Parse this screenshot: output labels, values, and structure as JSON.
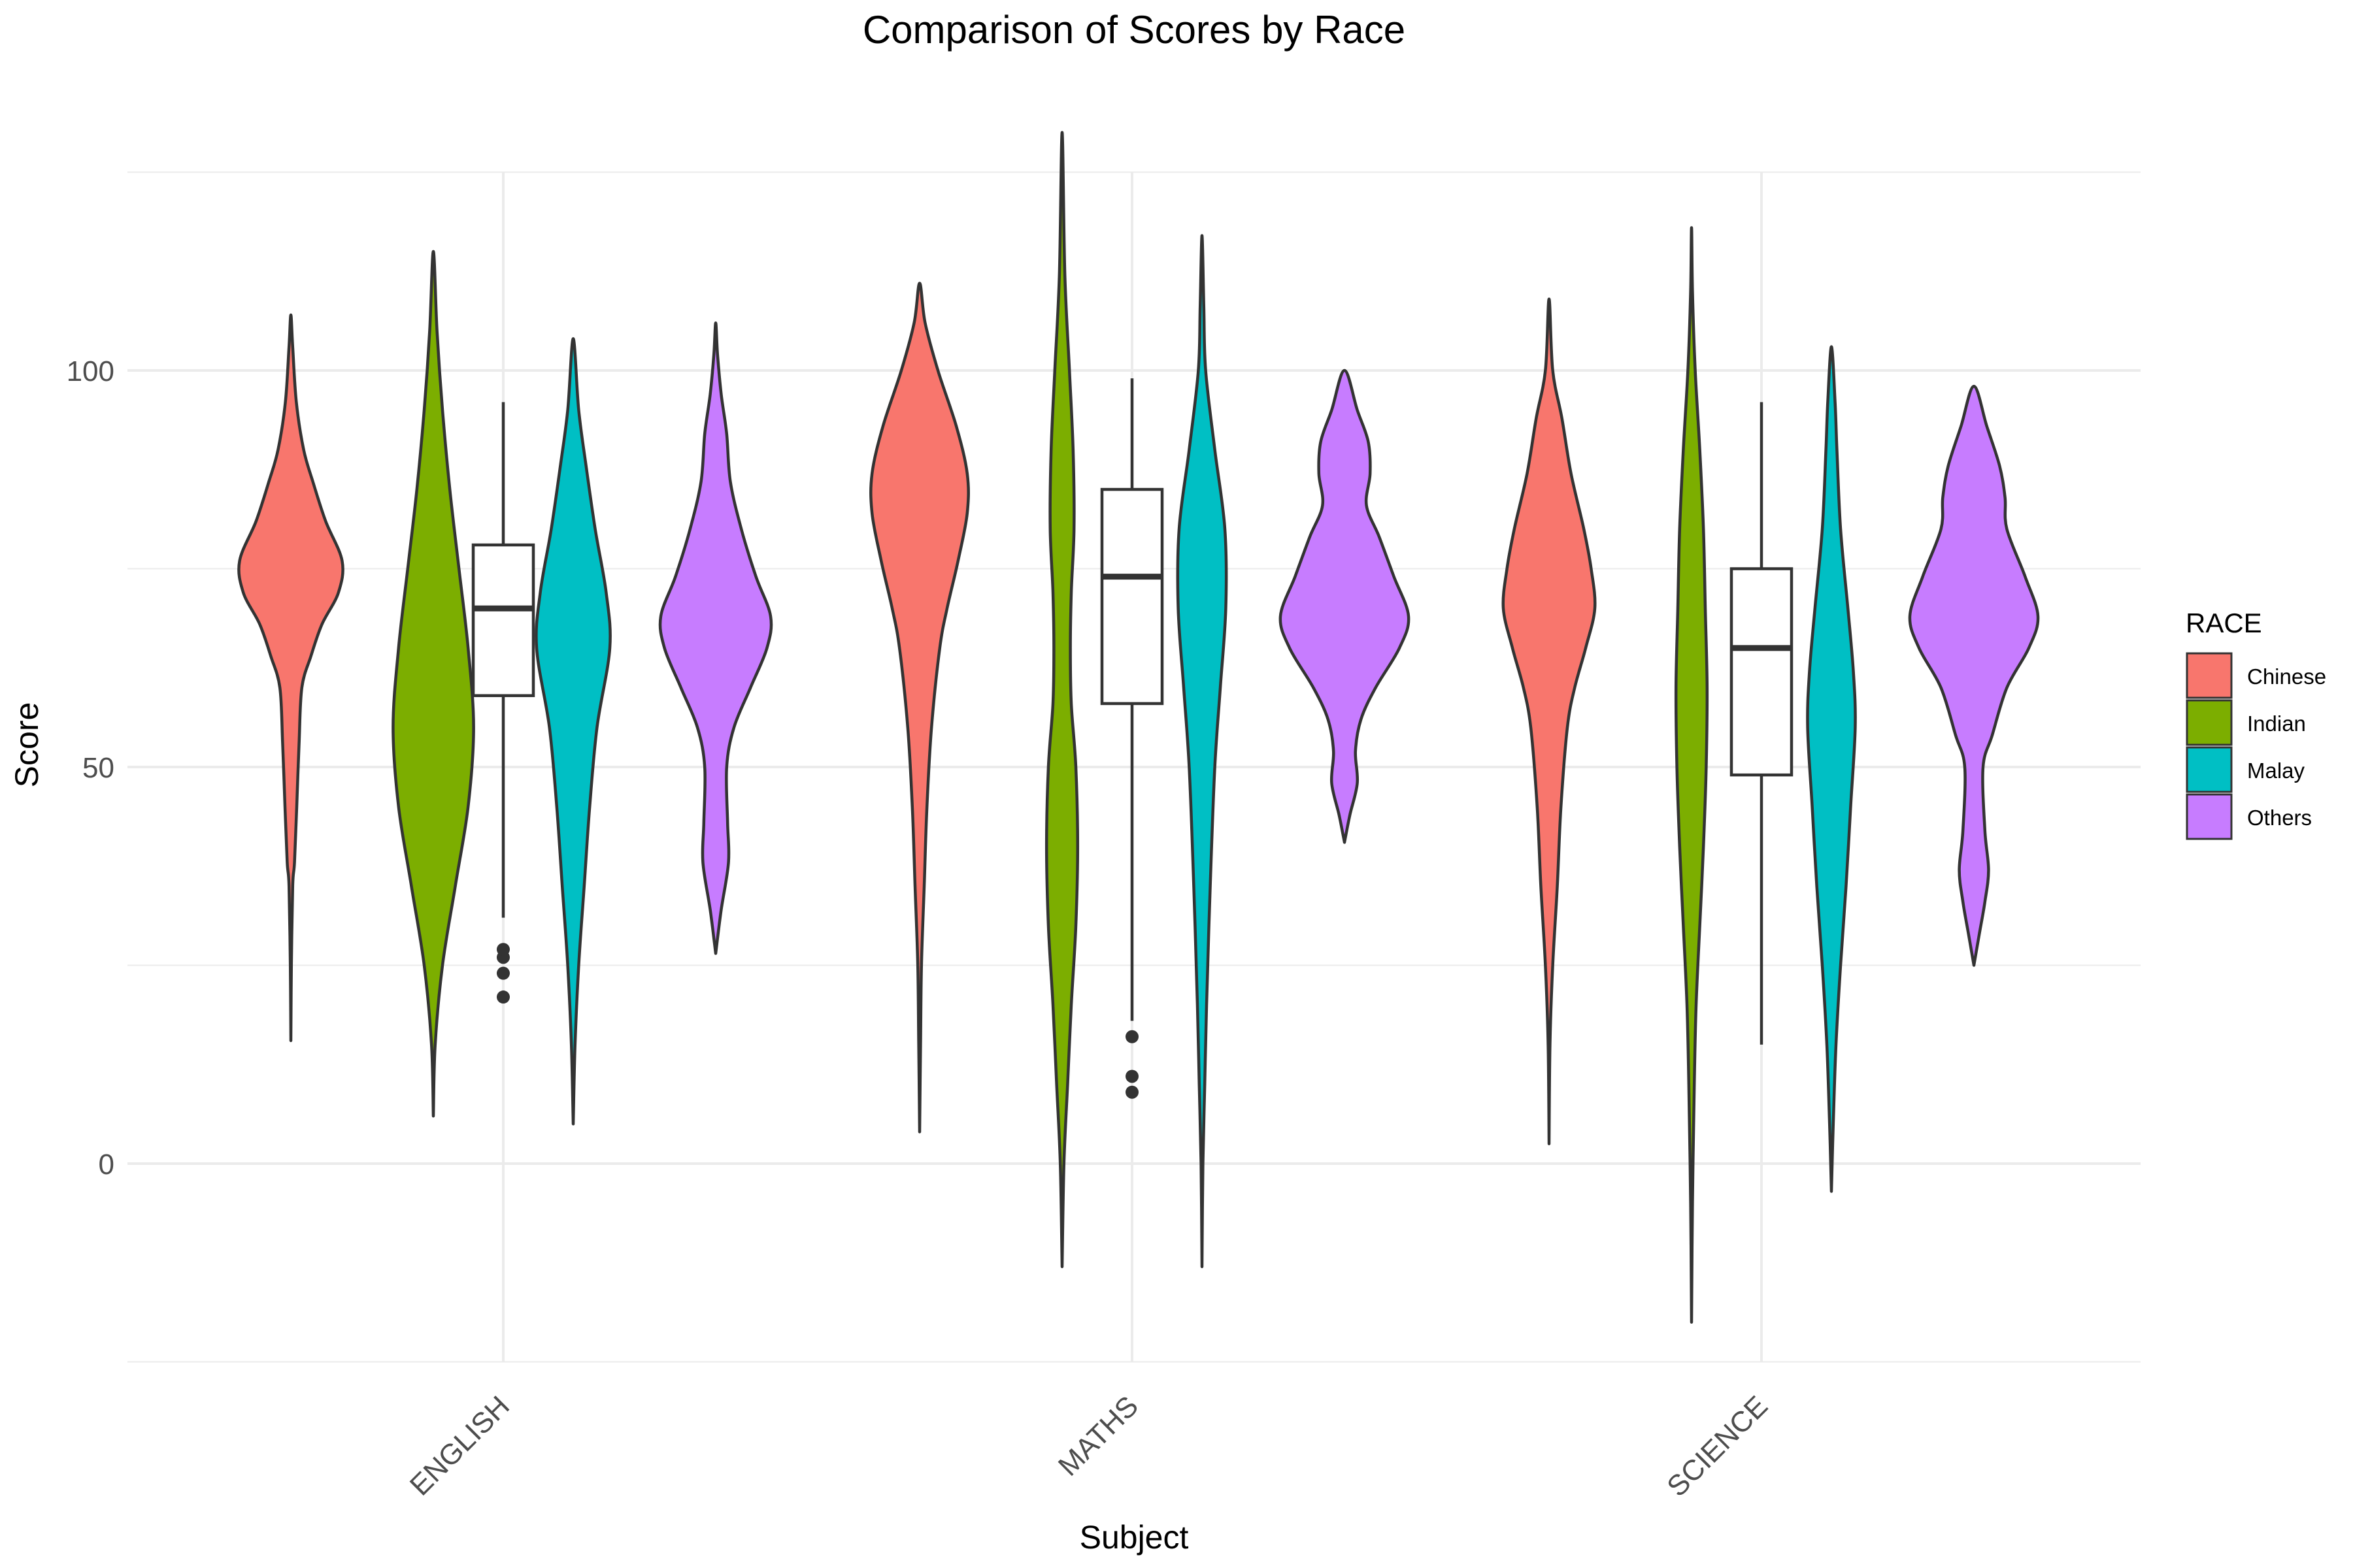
{
  "chart_data": {
    "type": "violin",
    "title": "Comparison of Scores by Race",
    "xlabel": "Subject",
    "ylabel": "Score",
    "categories": [
      "ENGLISH",
      "MATHS",
      "SCIENCE"
    ],
    "ylim": [
      -25,
      125
    ],
    "yticks": [
      0,
      50,
      100
    ],
    "grid": true,
    "legend": {
      "title": "RACE",
      "placement": "right",
      "entries": [
        {
          "name": "Chinese",
          "color": "#F8766D"
        },
        {
          "name": "Indian",
          "color": "#7CAE00"
        },
        {
          "name": "Malay",
          "color": "#00BFC4"
        },
        {
          "name": "Others",
          "color": "#C77CFF"
        }
      ]
    },
    "violins": [
      {
        "category": "ENGLISH",
        "race": "Chinese",
        "profile": [
          [
            15.5,
            0
          ],
          [
            25,
            0.3
          ],
          [
            35,
            1
          ],
          [
            38,
            2
          ],
          [
            45,
            3.2
          ],
          [
            53,
            4.5
          ],
          [
            60,
            6
          ],
          [
            64,
            11
          ],
          [
            68,
            17
          ],
          [
            72,
            26
          ],
          [
            76,
            28
          ],
          [
            81,
            19
          ],
          [
            86,
            12
          ],
          [
            90,
            7
          ],
          [
            96,
            3
          ],
          [
            103,
            1
          ],
          [
            107,
            0
          ]
        ]
      },
      {
        "category": "ENGLISH",
        "race": "Indian",
        "profile": [
          [
            6,
            0
          ],
          [
            15,
            1
          ],
          [
            25,
            5
          ],
          [
            35,
            12
          ],
          [
            45,
            19
          ],
          [
            55,
            22
          ],
          [
            65,
            19
          ],
          [
            75,
            14
          ],
          [
            85,
            9
          ],
          [
            95,
            5
          ],
          [
            105,
            2
          ],
          [
            115,
            0
          ]
        ]
      },
      {
        "category": "ENGLISH",
        "race": "Malay",
        "profile": [
          [
            5,
            0
          ],
          [
            15,
            1
          ],
          [
            25,
            3
          ],
          [
            35,
            6
          ],
          [
            45,
            9
          ],
          [
            55,
            13
          ],
          [
            65,
            20
          ],
          [
            72,
            18
          ],
          [
            80,
            12
          ],
          [
            88,
            7
          ],
          [
            95,
            3
          ],
          [
            104,
            0
          ]
        ]
      },
      {
        "category": "ENGLISH",
        "race": "Others",
        "profile": [
          [
            26.5,
            0
          ],
          [
            32,
            3
          ],
          [
            38,
            7
          ],
          [
            43,
            6.5
          ],
          [
            50,
            6
          ],
          [
            55,
            10
          ],
          [
            60,
            19
          ],
          [
            65,
            28
          ],
          [
            69,
            30
          ],
          [
            74,
            22
          ],
          [
            80,
            14
          ],
          [
            86,
            8
          ],
          [
            92,
            6
          ],
          [
            97,
            3
          ],
          [
            102,
            1
          ],
          [
            106,
            0
          ]
        ]
      },
      {
        "category": "MATHS",
        "race": "Chinese",
        "profile": [
          [
            4,
            0
          ],
          [
            15,
            0.5
          ],
          [
            25,
            1
          ],
          [
            35,
            2.5
          ],
          [
            45,
            4
          ],
          [
            55,
            6.5
          ],
          [
            65,
            11
          ],
          [
            70,
            15
          ],
          [
            76,
            21
          ],
          [
            82,
            26
          ],
          [
            87,
            26
          ],
          [
            93,
            20
          ],
          [
            100,
            10
          ],
          [
            106,
            3
          ],
          [
            111,
            0
          ]
        ]
      },
      {
        "category": "MATHS",
        "race": "Indian",
        "profile": [
          [
            -13,
            0
          ],
          [
            0,
            1
          ],
          [
            10,
            3
          ],
          [
            20,
            5
          ],
          [
            30,
            7.5
          ],
          [
            40,
            8.5
          ],
          [
            50,
            7.5
          ],
          [
            58,
            5
          ],
          [
            65,
            4.5
          ],
          [
            72,
            5
          ],
          [
            80,
            6.5
          ],
          [
            90,
            6
          ],
          [
            100,
            4
          ],
          [
            112,
            1.5
          ],
          [
            130,
            0
          ]
        ]
      },
      {
        "category": "MATHS",
        "race": "Malay",
        "profile": [
          [
            -13,
            0
          ],
          [
            0,
            0.5
          ],
          [
            10,
            1.5
          ],
          [
            20,
            2.5
          ],
          [
            35,
            4.5
          ],
          [
            50,
            7
          ],
          [
            60,
            10
          ],
          [
            70,
            13
          ],
          [
            80,
            12.5
          ],
          [
            90,
            7
          ],
          [
            100,
            2
          ],
          [
            108,
            1
          ],
          [
            117,
            0
          ]
        ]
      },
      {
        "category": "MATHS",
        "race": "Others",
        "profile": [
          [
            40.5,
            0
          ],
          [
            44,
            3
          ],
          [
            48,
            7
          ],
          [
            52,
            6
          ],
          [
            56,
            9
          ],
          [
            60,
            17
          ],
          [
            65,
            30
          ],
          [
            69,
            35
          ],
          [
            74,
            27
          ],
          [
            79,
            19
          ],
          [
            83,
            12
          ],
          [
            87,
            14
          ],
          [
            91,
            13
          ],
          [
            95,
            7
          ],
          [
            100,
            0
          ]
        ]
      },
      {
        "category": "SCIENCE",
        "race": "Chinese",
        "profile": [
          [
            2.5,
            0
          ],
          [
            15,
            0.5
          ],
          [
            25,
            2
          ],
          [
            35,
            4.5
          ],
          [
            45,
            6.5
          ],
          [
            55,
            10
          ],
          [
            60,
            14
          ],
          [
            65,
            20
          ],
          [
            70,
            25
          ],
          [
            75,
            23
          ],
          [
            80,
            19
          ],
          [
            87,
            12
          ],
          [
            94,
            7
          ],
          [
            100,
            2
          ],
          [
            109,
            0
          ]
        ]
      },
      {
        "category": "SCIENCE",
        "race": "Indian",
        "profile": [
          [
            -20,
            0
          ],
          [
            -5,
            0.5
          ],
          [
            10,
            1.5
          ],
          [
            20,
            2.5
          ],
          [
            30,
            4.5
          ],
          [
            40,
            6.5
          ],
          [
            50,
            8
          ],
          [
            60,
            8.5
          ],
          [
            70,
            7.5
          ],
          [
            80,
            6.5
          ],
          [
            90,
            4.5
          ],
          [
            100,
            2
          ],
          [
            110,
            0.5
          ],
          [
            118,
            0
          ]
        ]
      },
      {
        "category": "SCIENCE",
        "race": "Malay",
        "profile": [
          [
            -3.5,
            0
          ],
          [
            5,
            1
          ],
          [
            15,
            2.5
          ],
          [
            25,
            5
          ],
          [
            35,
            8
          ],
          [
            45,
            10.5
          ],
          [
            55,
            13
          ],
          [
            62,
            12
          ],
          [
            70,
            9
          ],
          [
            80,
            5
          ],
          [
            90,
            3
          ],
          [
            96,
            2
          ],
          [
            103,
            0
          ]
        ]
      },
      {
        "category": "SCIENCE",
        "race": "Others",
        "profile": [
          [
            25,
            0
          ],
          [
            29,
            3
          ],
          [
            33,
            6
          ],
          [
            37,
            8
          ],
          [
            42,
            6
          ],
          [
            50,
            5
          ],
          [
            54,
            10
          ],
          [
            60,
            18
          ],
          [
            65,
            30
          ],
          [
            69,
            35
          ],
          [
            74,
            28
          ],
          [
            80,
            18
          ],
          [
            84,
            17
          ],
          [
            88,
            14
          ],
          [
            93,
            7
          ],
          [
            98,
            0
          ]
        ]
      }
    ],
    "boxplots": [
      {
        "category": "ENGLISH",
        "whisker_low": 31,
        "q1": 59,
        "median": 70,
        "q3": 78,
        "whisker_high": 96,
        "outliers": [
          21,
          24,
          26,
          27
        ]
      },
      {
        "category": "MATHS",
        "whisker_low": 18,
        "q1": 58,
        "median": 74,
        "q3": 85,
        "whisker_high": 99,
        "outliers": [
          9,
          11,
          16
        ]
      },
      {
        "category": "SCIENCE",
        "whisker_low": 15,
        "q1": 49,
        "median": 65,
        "q3": 75,
        "whisker_high": 96,
        "outliers": []
      }
    ]
  }
}
